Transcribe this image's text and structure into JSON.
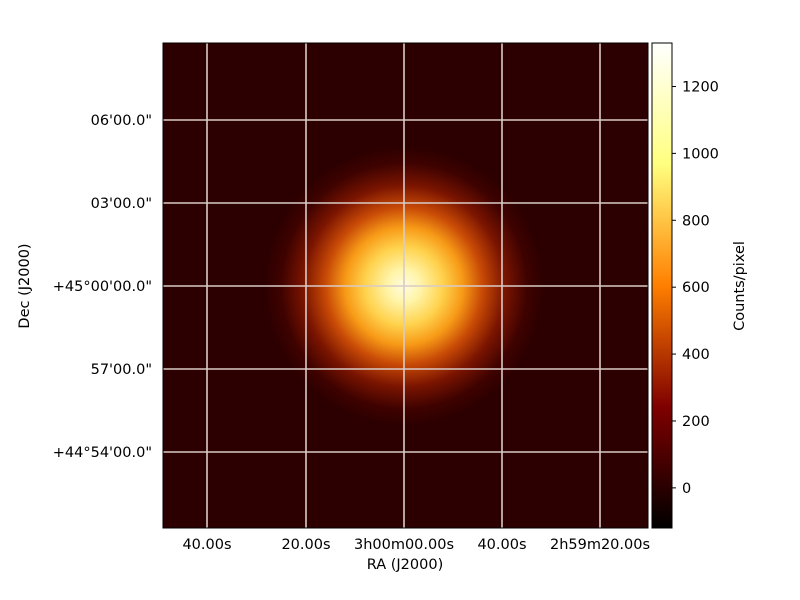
{
  "chart_data": {
    "type": "heatmap",
    "title": "",
    "xlabel": "RA (J2000)",
    "ylabel": "Dec (J2000)",
    "x_ticks": [
      "40.00s",
      "20.00s",
      "3h00m00.00s",
      "40.00s",
      "2h59m20.00s"
    ],
    "y_ticks": [
      "+44°54'00.0\"",
      "57'00.0\"",
      "+45°00'00.0\"",
      "03'00.0\"",
      "06'00.0\""
    ],
    "colorbar": {
      "label": "Counts/pixel",
      "range": [
        -120,
        1330
      ],
      "ticks": [
        0,
        200,
        400,
        600,
        800,
        1000,
        1200
      ],
      "colormap": "afmhot"
    },
    "grid": true,
    "grid_color": "#d9cbc6",
    "source": {
      "shape": "gaussian",
      "center_x_tick": "3h00m00.00s",
      "center_y_tick": "+45°00'00.0\"",
      "peak_counts": 1330,
      "background_counts": 80
    }
  }
}
